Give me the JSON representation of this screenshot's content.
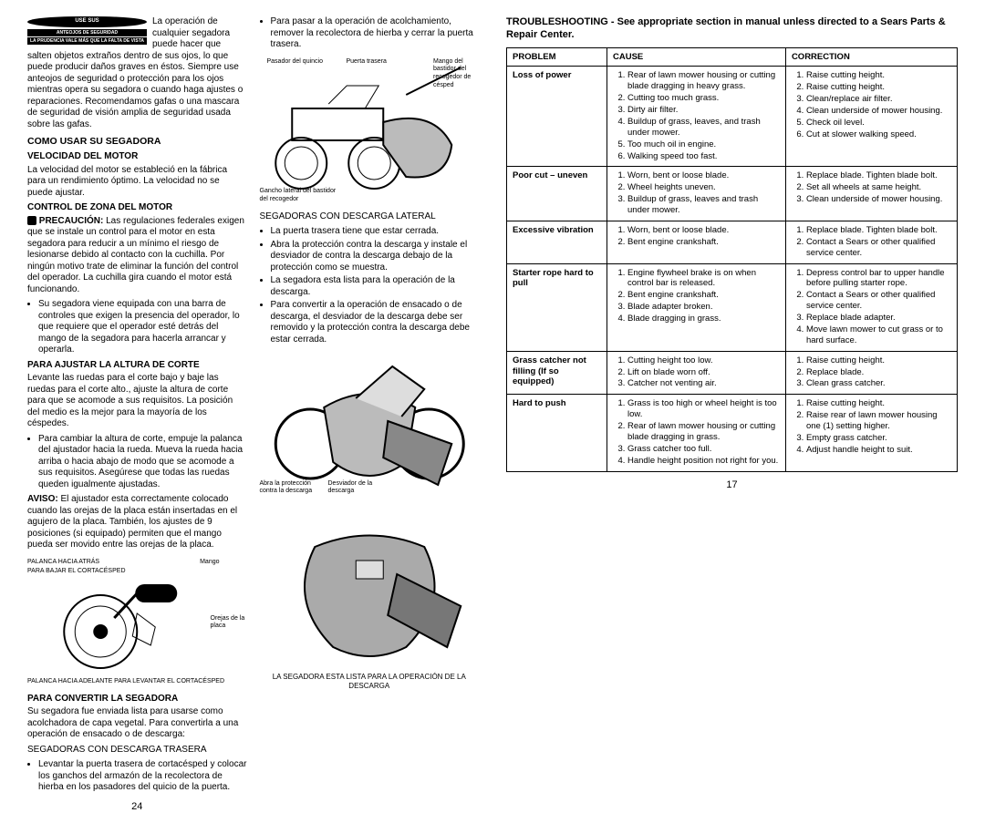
{
  "left": {
    "warning": {
      "goggles": "USE SUS",
      "goggles2": "ANTEOJOS DE\nSEGURIDAD",
      "prudencia": "LA PRUDENCIA\nVALE MÁS QUE LA\nFALTA DE VISTA"
    },
    "intro1": "La operación de cualquier segadora puede hacer que salten objetos extraños dentro de sus ojos, lo que puede producir daños graves en éstos. Siempre use anteojos de seguridad o protección para los ojos mientras opera su segadora o cuando haga ajustes o reparaciones. Recomendamos gafas o una mascara de seguridad de visión amplia de seguridad usada sobre las gafas.",
    "h1": "COMO USAR SU SEGADORA",
    "h2a": "VELOCIDAD DEL MOTOR",
    "p2a": "La velocidad del motor se estableció en la fábrica para un rendimiento óptimo. La velocidad no se puede ajustar.",
    "h2b": "CONTROL DE ZONA DEL MOTOR",
    "p2b_pre": "PRECAUCIÓN:",
    "p2b": " Las regulaciones federales exigen que se instale un control para el motor en esta segadora para reducir a un mínimo el riesgo de lesionarse debido al contacto con la cuchilla. Por ningún motivo trate de eliminar la función del control del operador. La cuchilla gira cuando el motor está funcionando.",
    "b1": "Su segadora viene equipada con una barra de controles que exigen la presencia del operador, lo que requiere que el operador esté detrás del mango de la segadora para hacerla arrancar y operarla.",
    "h2c": "PARA AJUSTAR LA ALTURA DE CORTE",
    "p2c": "Levante las ruedas para el corte bajo y baje las ruedas para el corte alto., ajuste la altura de corte para que se acomode a sus requisitos. La posición del medio es la mejor para la mayoría de los céspedes.",
    "b2": "Para cambiar la altura de corte, empuje la palanca del ajustador hacia la rueda. Mueva la rueda hacia arriba o hacia abajo de modo que se acomode a sus requisitos. Asegúrese que todas las ruedas queden igualmente ajustadas.",
    "aviso_pre": "AVISO:",
    "aviso": " El ajustador esta correctamente colocado cuando las orejas de la placa están insertadas en el agujero de la placa. También, los ajustes de 9 posiciones (si equipado) permiten que el mango pueda ser movido entre las orejas de la placa.",
    "lbl_palanca_atras": "PALANCA HACIA ATRÁS",
    "lbl_bajar": "PARA BAJAR EL CORTACÉSPED",
    "lbl_mango": "Mango",
    "lbl_orejas": "Orejas de la placa",
    "lbl_palanca_adelante": "PALANCA HACIA ADELANTE PARA LEVANTAR EL CORTACÉSPED",
    "h2d": "PARA CONVERTIR LA SEGADORA",
    "p2d": "Su segadora fue enviada lista para usarse como acolchadora de capa vegetal. Para convertirla a una operación de ensacado o de descarga:",
    "p2d2": "SEGADORAS CON DESCARGA TRASERA",
    "b3": "Levantar la puerta trasera de cortacésped y colocar los ganchos del armazón de la recolectora de hierba en los pasadores del quicio de la puerta.",
    "col2": {
      "b4": "Para pasar a la operación de acolchamiento, remover la recolectora de hierba y cerrar la puerta trasera.",
      "lbl_pasador": "Pasador del quincio",
      "lbl_puerta": "Puerta trasera",
      "lbl_mango_rec": "Mango del bastidor del recogedor de césped",
      "lbl_gancho": "Gancho lateral del bastidor del recogedor",
      "p3": "SEGADORAS CON DESCARGA LATERAL",
      "b5": "La puerta trasera tiene que estar cerrada.",
      "b6": "Abra la protección contra la descarga y instale el desviador de contra la descarga debajo de la protección como se muestra.",
      "b7": "La segadora esta lista para la operación de la descarga.",
      "b8": "Para convertir a la operación de ensacado o de descarga, el desviador de la descarga debe ser removido y la protección contra la descarga debe estar cerrada.",
      "lbl_abra": "Abra la protección contra la descarga",
      "lbl_desviador": "Desviador de la descarga",
      "caption": "LA SEGADORA ESTA LISTA PARA LA OPERACIÓN DE LA DESCARGA"
    },
    "page_num": "24"
  },
  "right": {
    "title": "TROUBLESHOOTING - See appropriate section in manual unless directed to a Sears Parts & Repair Center.",
    "cols": {
      "problem": "PROBLEM",
      "cause": "CAUSE",
      "correction": "CORRECTION"
    },
    "rows": [
      {
        "problem": "Loss of power",
        "causes": [
          "Rear of lawn mower housing or cutting blade dragging in heavy grass.",
          "Cutting too much grass.",
          "Dirty air filter.",
          "Buildup of grass, leaves, and trash under mower.",
          "Too much oil in engine.",
          "Walking speed too fast."
        ],
        "fixes": [
          "Raise cutting height.",
          "Raise cutting height.",
          "Clean/replace air filter.",
          "Clean underside of mower housing.",
          "Check oil level.",
          "Cut at slower walking speed."
        ]
      },
      {
        "problem": "Poor cut – uneven",
        "causes": [
          "Worn, bent or loose blade.",
          "Wheel heights uneven.",
          "Buildup of grass, leaves and trash under mower."
        ],
        "fixes": [
          "Replace blade. Tighten blade bolt.",
          "Set all wheels at same height.",
          "Clean underside of mower housing."
        ]
      },
      {
        "problem": "Excessive vibration",
        "causes": [
          "Worn, bent or loose blade.",
          "Bent engine crankshaft."
        ],
        "fixes": [
          "Replace blade. Tighten blade bolt.",
          "Contact a Sears or other qualified service center."
        ]
      },
      {
        "problem": "Starter rope hard to pull",
        "causes": [
          "Engine flywheel brake is on when control bar is released.",
          "Bent engine crankshaft.",
          "Blade adapter broken.",
          "Blade dragging in grass."
        ],
        "fixes": [
          "Depress control bar to upper handle before pulling starter rope.",
          "Contact a Sears or other qualified service center.",
          "Replace blade adapter.",
          "Move lawn mower to cut grass or to hard surface."
        ]
      },
      {
        "problem": "Grass catcher not filling (If so equipped)",
        "causes": [
          "Cutting height too low.",
          "Lift on blade worn off.",
          "Catcher not venting air."
        ],
        "fixes": [
          "Raise cutting height.",
          "Replace blade.",
          "Clean grass catcher."
        ]
      },
      {
        "problem": "Hard to push",
        "causes": [
          "Grass is too high or wheel height is too low.",
          "Rear of lawn mower housing or cutting blade dragging in grass.",
          "Grass catcher too full.",
          "Handle height position not right for you."
        ],
        "fixes": [
          "Raise cutting height.",
          "Raise rear of lawn mower housing one (1) setting higher.",
          "Empty grass catcher.",
          "Adjust handle height to suit."
        ]
      }
    ],
    "page_num": "17"
  }
}
